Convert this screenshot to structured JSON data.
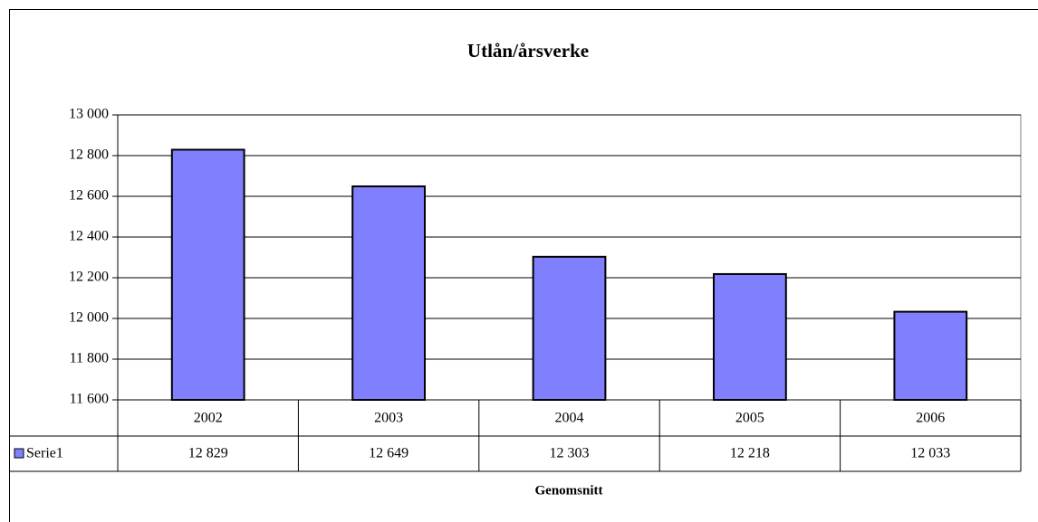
{
  "chart_data": {
    "type": "bar",
    "title": "Utlån/årsverke",
    "x_label": "Genomsnitt",
    "categories": [
      "2002",
      "2003",
      "2004",
      "2005",
      "2006"
    ],
    "series": [
      {
        "name": "Serie1",
        "color": "#8080ff",
        "values": [
          12829,
          12649,
          12303,
          12218,
          12033
        ],
        "value_labels": [
          "12 829",
          "12 649",
          "12 303",
          "12 218",
          "12 033"
        ]
      }
    ],
    "ylim": [
      11600,
      13000
    ],
    "yticks": [
      {
        "value": 11600,
        "label": "11 600"
      },
      {
        "value": 11800,
        "label": "11 800"
      },
      {
        "value": 12000,
        "label": "12 000"
      },
      {
        "value": 12200,
        "label": "12 200"
      },
      {
        "value": 12400,
        "label": "12 400"
      },
      {
        "value": 12600,
        "label": "12 600"
      },
      {
        "value": 12800,
        "label": "12 800"
      },
      {
        "value": 13000,
        "label": "13 000"
      }
    ],
    "grid": true
  }
}
